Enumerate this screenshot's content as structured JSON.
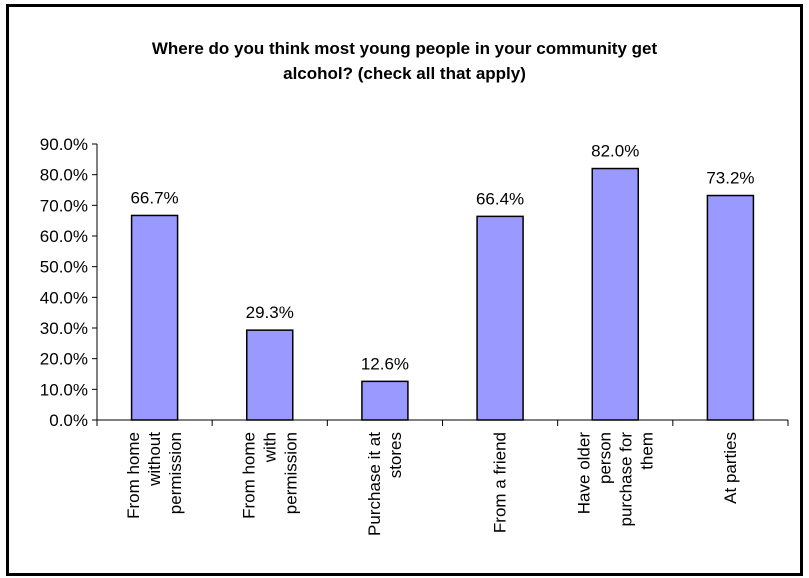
{
  "chart_data": {
    "type": "bar",
    "title_lines": [
      "Where do you think most young people in your community get",
      "alcohol? (check all that apply)"
    ],
    "categories": [
      [
        "From home",
        "without",
        "permission"
      ],
      [
        "From home",
        "with",
        "permission"
      ],
      [
        "Purchase it at",
        "stores"
      ],
      [
        "From a friend"
      ],
      [
        "Have older",
        "person",
        "purchase for",
        "them"
      ],
      [
        "At parties"
      ]
    ],
    "values": [
      66.7,
      29.3,
      12.6,
      66.4,
      82.0,
      73.2
    ],
    "value_labels": [
      "66.7%",
      "29.3%",
      "12.6%",
      "66.4%",
      "82.0%",
      "73.2%"
    ],
    "y_ticks": [
      "0.0%",
      "10.0%",
      "20.0%",
      "30.0%",
      "40.0%",
      "50.0%",
      "60.0%",
      "70.0%",
      "80.0%",
      "90.0%"
    ],
    "ylim": [
      0,
      90
    ],
    "xlabel": "",
    "ylabel": "",
    "grid": false,
    "legend": "none",
    "bar_color": "#9999ff"
  }
}
